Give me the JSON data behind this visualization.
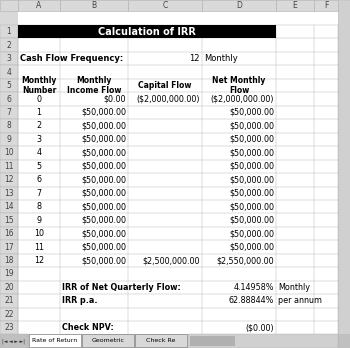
{
  "title": "Calculation of IRR",
  "title_bg": "#000000",
  "title_color": "#ffffff",
  "row3_label": "Cash Flow Frequency:",
  "row3_value": "12",
  "row3_unit": "Monthly",
  "header_row": [
    "Monthly\nNumber",
    "Monthly\nIncome Flow",
    "Capital Flow",
    "Net Monthly\nFlow"
  ],
  "data_rows": [
    [
      "0",
      "$0.00",
      "($2,000,000.00)",
      "($2,000,000.00)"
    ],
    [
      "1",
      "$50,000.00",
      "",
      "$50,000.00"
    ],
    [
      "2",
      "$50,000.00",
      "",
      "$50,000.00"
    ],
    [
      "3",
      "$50,000.00",
      "",
      "$50,000.00"
    ],
    [
      "4",
      "$50,000.00",
      "",
      "$50,000.00"
    ],
    [
      "5",
      "$50,000.00",
      "",
      "$50,000.00"
    ],
    [
      "6",
      "$50,000.00",
      "",
      "$50,000.00"
    ],
    [
      "7",
      "$50,000.00",
      "",
      "$50,000.00"
    ],
    [
      "8",
      "$50,000.00",
      "",
      "$50,000.00"
    ],
    [
      "9",
      "$50,000.00",
      "",
      "$50,000.00"
    ],
    [
      "10",
      "$50,000.00",
      "",
      "$50,000.00"
    ],
    [
      "11",
      "$50,000.00",
      "",
      "$50,000.00"
    ],
    [
      "12",
      "$50,000.00",
      "$2,500,000.00",
      "$2,550,000.00"
    ]
  ],
  "irr_label": "IRR of Net Quarterly Flow:",
  "irr_value": "4.14958%",
  "irr_unit": "Monthly",
  "irr_pa_label": "IRR p.a.",
  "irr_pa_value": "62.88844%",
  "irr_pa_unit": "per annum",
  "npv_label": "Check NPV:",
  "npv_value": "($0.00)",
  "tab_labels": [
    "Rate of Return",
    "Geometric",
    "Check Re"
  ],
  "col_letters": [
    "A",
    "B",
    "C",
    "D",
    "E",
    "F"
  ],
  "n_rows": 24,
  "sheet_bg": "#ffffff",
  "header_bg": "#d9d9d9",
  "grid_color": "#b0b0b0",
  "tab_bar_color": "#c0c0c0",
  "scrollbar_color": "#d0d0d0"
}
